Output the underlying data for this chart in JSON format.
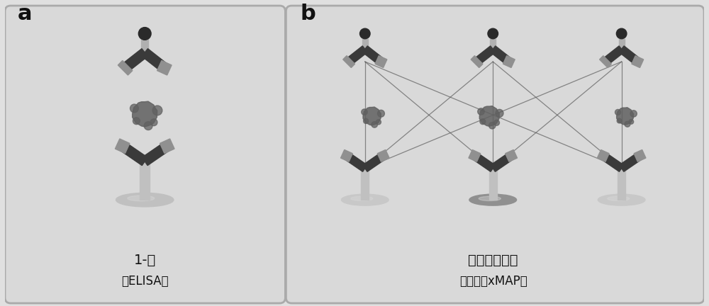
{
  "bg_color": "#e0e0e0",
  "panel_bg": "#d8d8d8",
  "dark_ab": "#3a3a3a",
  "light_ab": "#909090",
  "stem_color": "#c0c0c0",
  "plate_light": "#c8c8c8",
  "plate_dark": "#909090",
  "antigen_color": "#606060",
  "line_color": "#555555",
  "label_a": "a",
  "label_b": "b",
  "text_elisa_line1": "1-重",
  "text_elisa_line2": "（ELISA）",
  "text_xmap_line1": "多重交叉反应",
  "text_xmap_line2": "（例如，xMAP）",
  "figsize": [
    10.0,
    4.32
  ],
  "dpi": 100
}
